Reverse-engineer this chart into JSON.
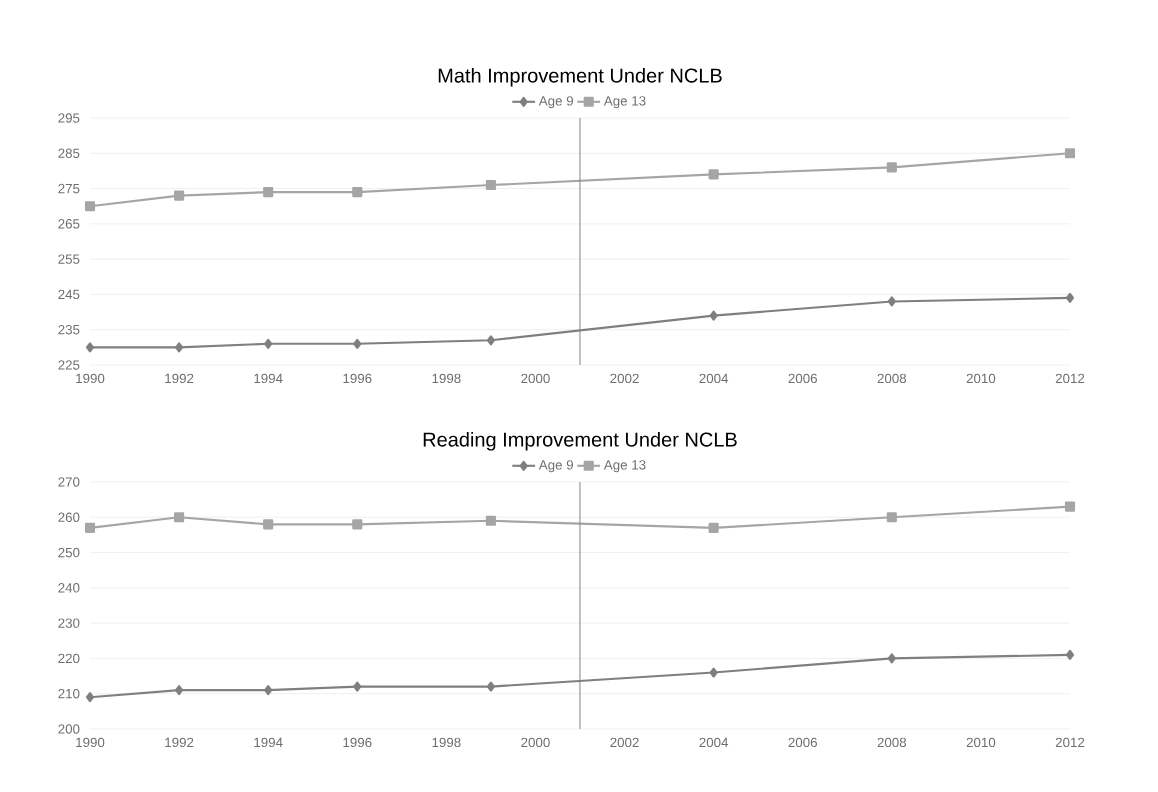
{
  "chart_data": [
    {
      "type": "line",
      "title": "Math Improvement Under NCLB",
      "x": [
        1990,
        1992,
        1994,
        1996,
        1999,
        2004,
        2008,
        2012
      ],
      "series": [
        {
          "name": "Age 9",
          "color": "#7f7f7f",
          "marker": "diamond",
          "values": [
            230,
            230,
            231,
            231,
            232,
            239,
            243,
            244
          ]
        },
        {
          "name": "Age 13",
          "color": "#a5a5a5",
          "marker": "square",
          "values": [
            270,
            273,
            274,
            274,
            276,
            279,
            281,
            285
          ]
        }
      ],
      "xlim": [
        1990,
        2012
      ],
      "xticks": [
        1990,
        1992,
        1994,
        1996,
        1998,
        2000,
        2002,
        2004,
        2006,
        2008,
        2010,
        2012
      ],
      "ylim": [
        225,
        295
      ],
      "yticks": [
        225,
        235,
        245,
        255,
        265,
        275,
        285,
        295
      ],
      "ref_lines": [
        {
          "axis": "x",
          "value": 2001,
          "color": "#808080"
        }
      ],
      "grid": "y",
      "legend": "top",
      "line_style": "solid"
    },
    {
      "type": "line",
      "title": "Reading Improvement Under NCLB",
      "x": [
        1990,
        1992,
        1994,
        1996,
        1999,
        2004,
        2008,
        2012
      ],
      "series": [
        {
          "name": "Age 9",
          "color": "#7f7f7f",
          "marker": "diamond",
          "values": [
            209,
            211,
            211,
            212,
            212,
            216,
            220,
            221
          ]
        },
        {
          "name": "Age 13",
          "color": "#a5a5a5",
          "marker": "square",
          "values": [
            257,
            260,
            258,
            258,
            259,
            257,
            260,
            263
          ]
        }
      ],
      "xlim": [
        1990,
        2012
      ],
      "xticks": [
        1990,
        1992,
        1994,
        1996,
        1998,
        2000,
        2002,
        2004,
        2006,
        2008,
        2010,
        2012
      ],
      "ylim": [
        200,
        270
      ],
      "yticks": [
        200,
        210,
        220,
        230,
        240,
        250,
        260,
        270
      ],
      "ref_lines": [
        {
          "axis": "x",
          "value": 2001,
          "color": "#808080"
        }
      ],
      "grid": "y",
      "legend": "top",
      "line_style": "solid"
    }
  ]
}
